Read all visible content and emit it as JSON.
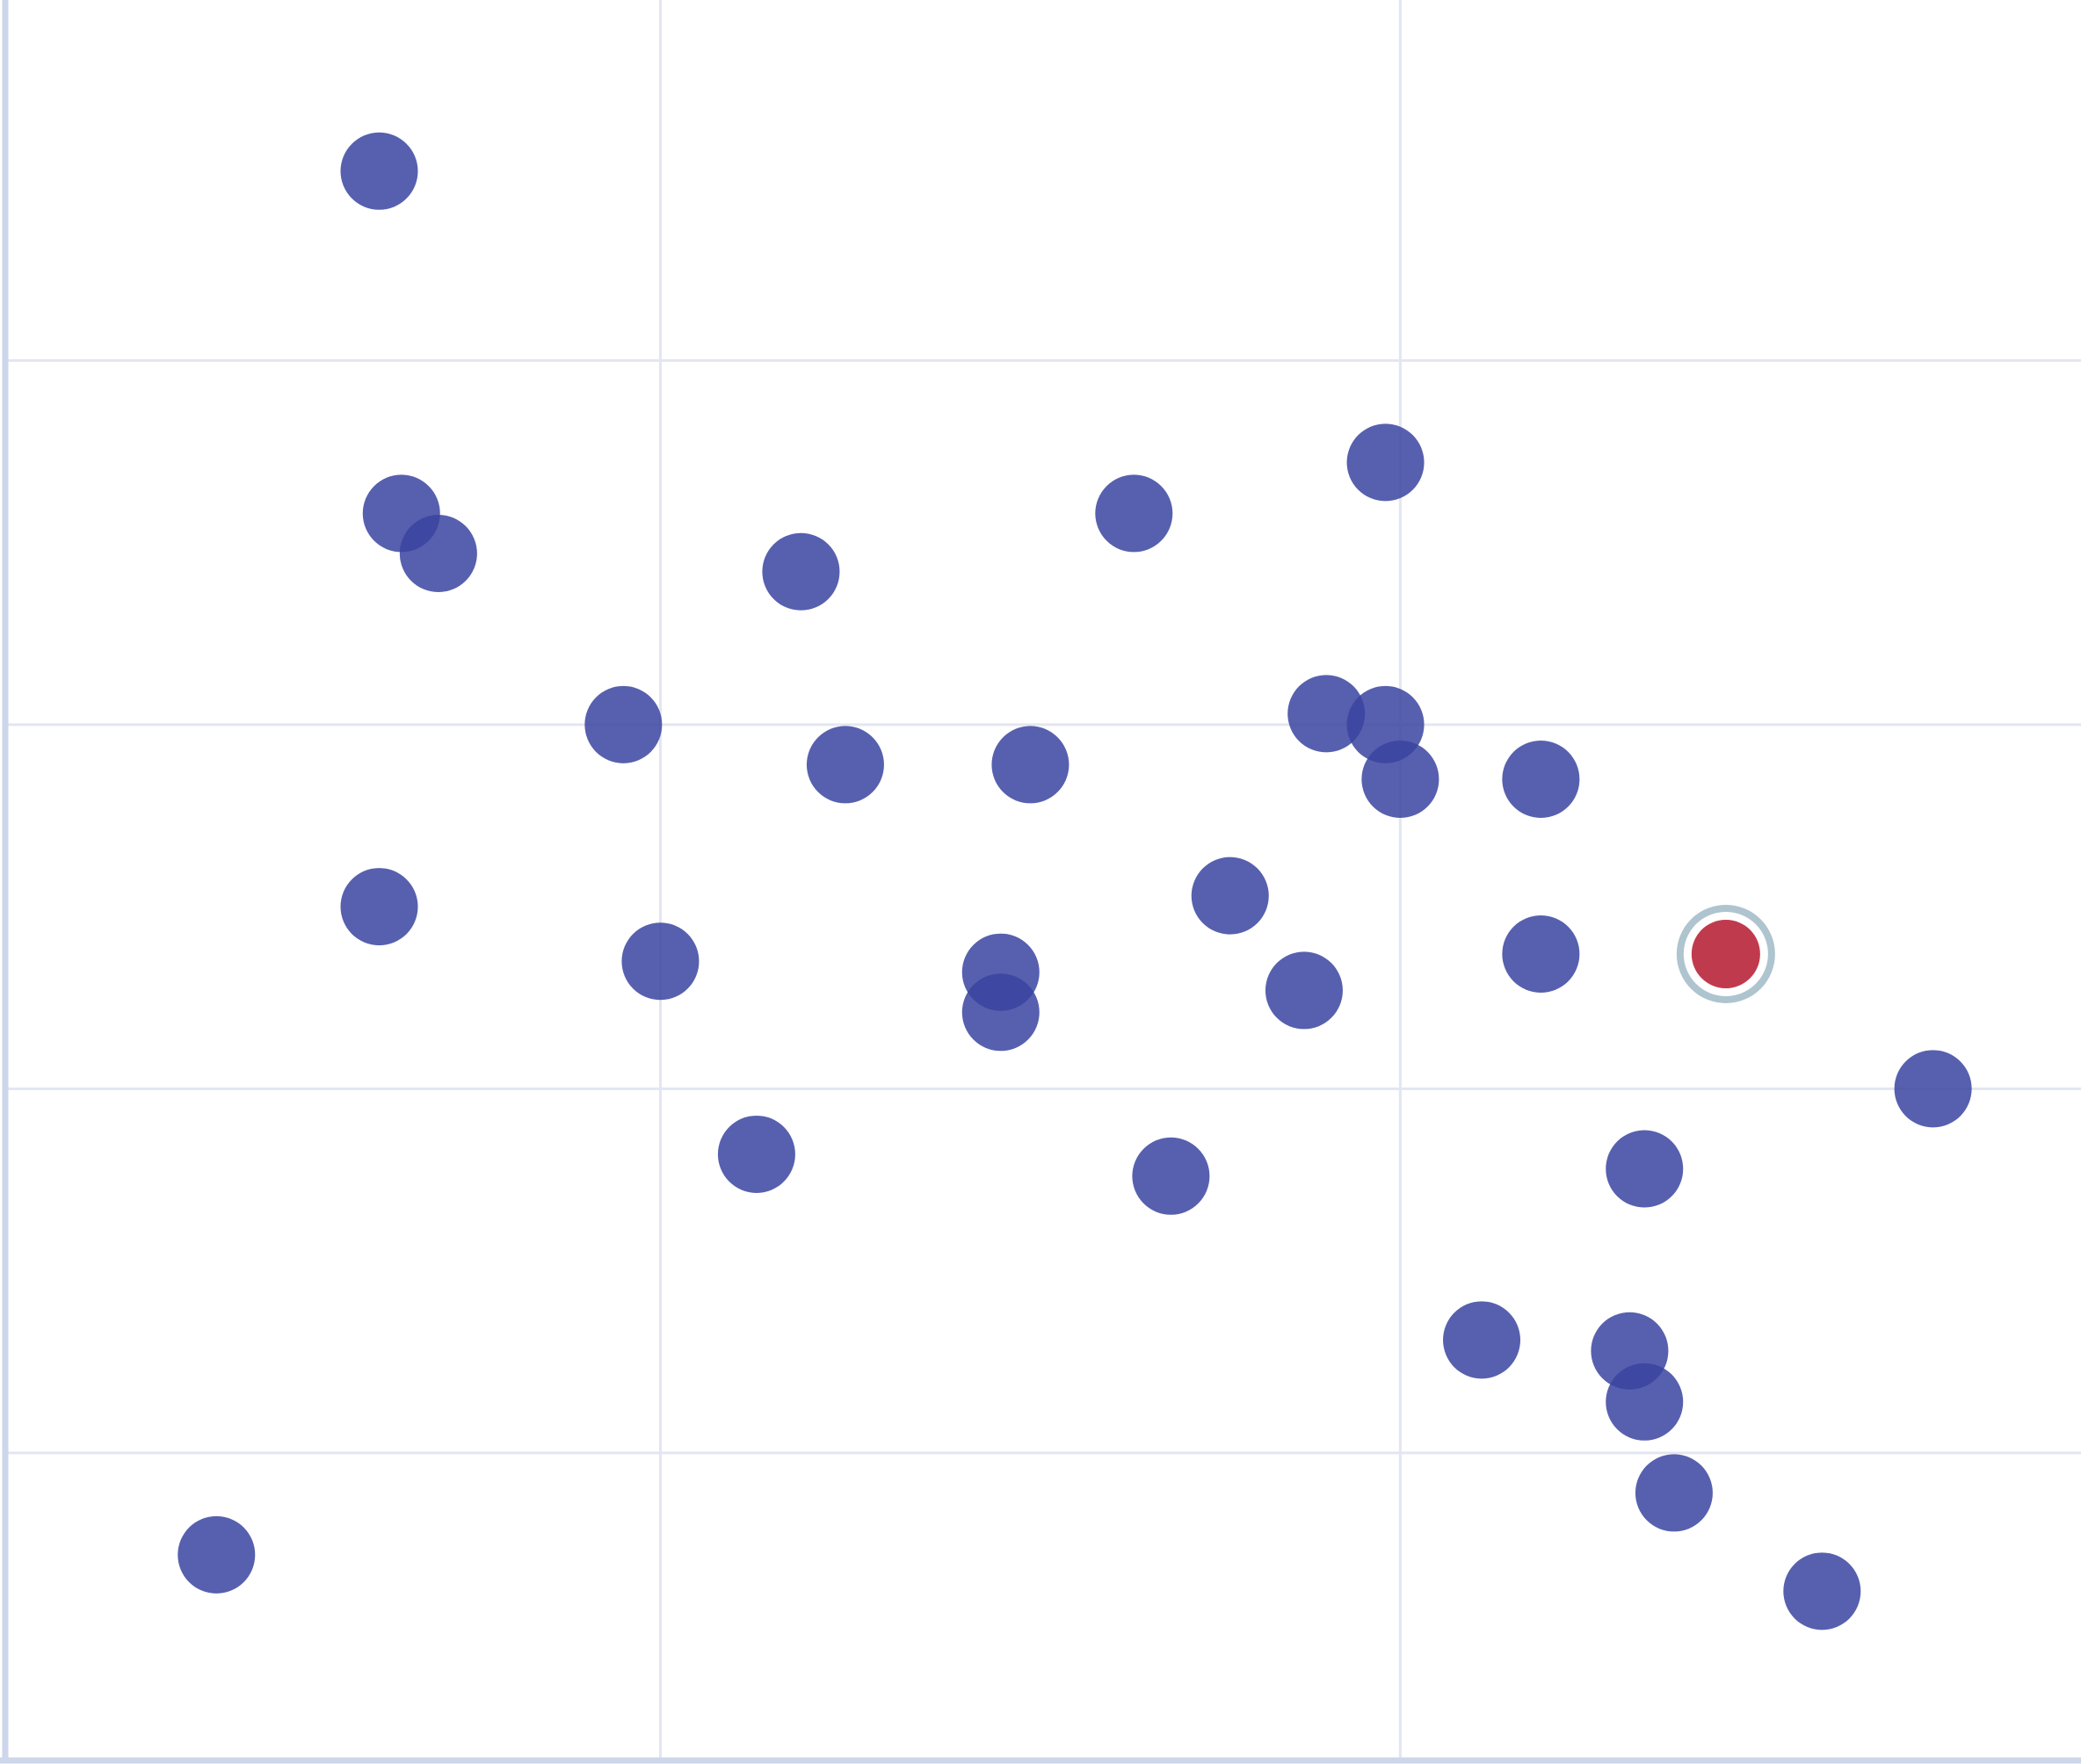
{
  "chart_data": {
    "type": "scatter",
    "title": "",
    "xlabel": "",
    "ylabel": "",
    "xlim": [
      0.117,
      2.92
    ],
    "ylim": [
      0.16,
      4.99
    ],
    "x_gridlines": [
      1,
      2
    ],
    "y_gridlines": [
      1,
      2,
      3,
      4
    ],
    "grid": true,
    "tick_labels_shown": false,
    "colors": {
      "point": "#3a44a0",
      "point_opacity": 0.85,
      "highlight": "#c03a4d",
      "highlight_ring": "#aec4cf",
      "grid": "#e3e6f2",
      "axis": "#cdd6ea"
    },
    "points": [
      {
        "x": 0.62,
        "y": 4.52
      },
      {
        "x": 0.65,
        "y": 3.58
      },
      {
        "x": 0.7,
        "y": 3.47
      },
      {
        "x": 1.19,
        "y": 3.42
      },
      {
        "x": 1.64,
        "y": 3.58
      },
      {
        "x": 1.98,
        "y": 3.72
      },
      {
        "x": 0.95,
        "y": 3.0
      },
      {
        "x": 1.25,
        "y": 2.89
      },
      {
        "x": 1.5,
        "y": 2.89
      },
      {
        "x": 1.9,
        "y": 3.03
      },
      {
        "x": 1.98,
        "y": 3.0
      },
      {
        "x": 2.0,
        "y": 2.85
      },
      {
        "x": 2.19,
        "y": 2.85
      },
      {
        "x": 0.62,
        "y": 2.5
      },
      {
        "x": 1.0,
        "y": 2.35
      },
      {
        "x": 1.46,
        "y": 2.32
      },
      {
        "x": 1.46,
        "y": 2.21
      },
      {
        "x": 1.77,
        "y": 2.53
      },
      {
        "x": 1.87,
        "y": 2.27
      },
      {
        "x": 2.19,
        "y": 2.37
      },
      {
        "x": 2.44,
        "y": 2.37,
        "highlighted": true
      },
      {
        "x": 2.72,
        "y": 2.0
      },
      {
        "x": 1.13,
        "y": 1.82
      },
      {
        "x": 1.69,
        "y": 1.76
      },
      {
        "x": 2.33,
        "y": 1.78
      },
      {
        "x": 2.11,
        "y": 1.31
      },
      {
        "x": 2.31,
        "y": 1.28
      },
      {
        "x": 2.33,
        "y": 1.14
      },
      {
        "x": 2.37,
        "y": 0.89
      },
      {
        "x": 0.4,
        "y": 0.72
      },
      {
        "x": 2.57,
        "y": 0.62
      }
    ]
  }
}
